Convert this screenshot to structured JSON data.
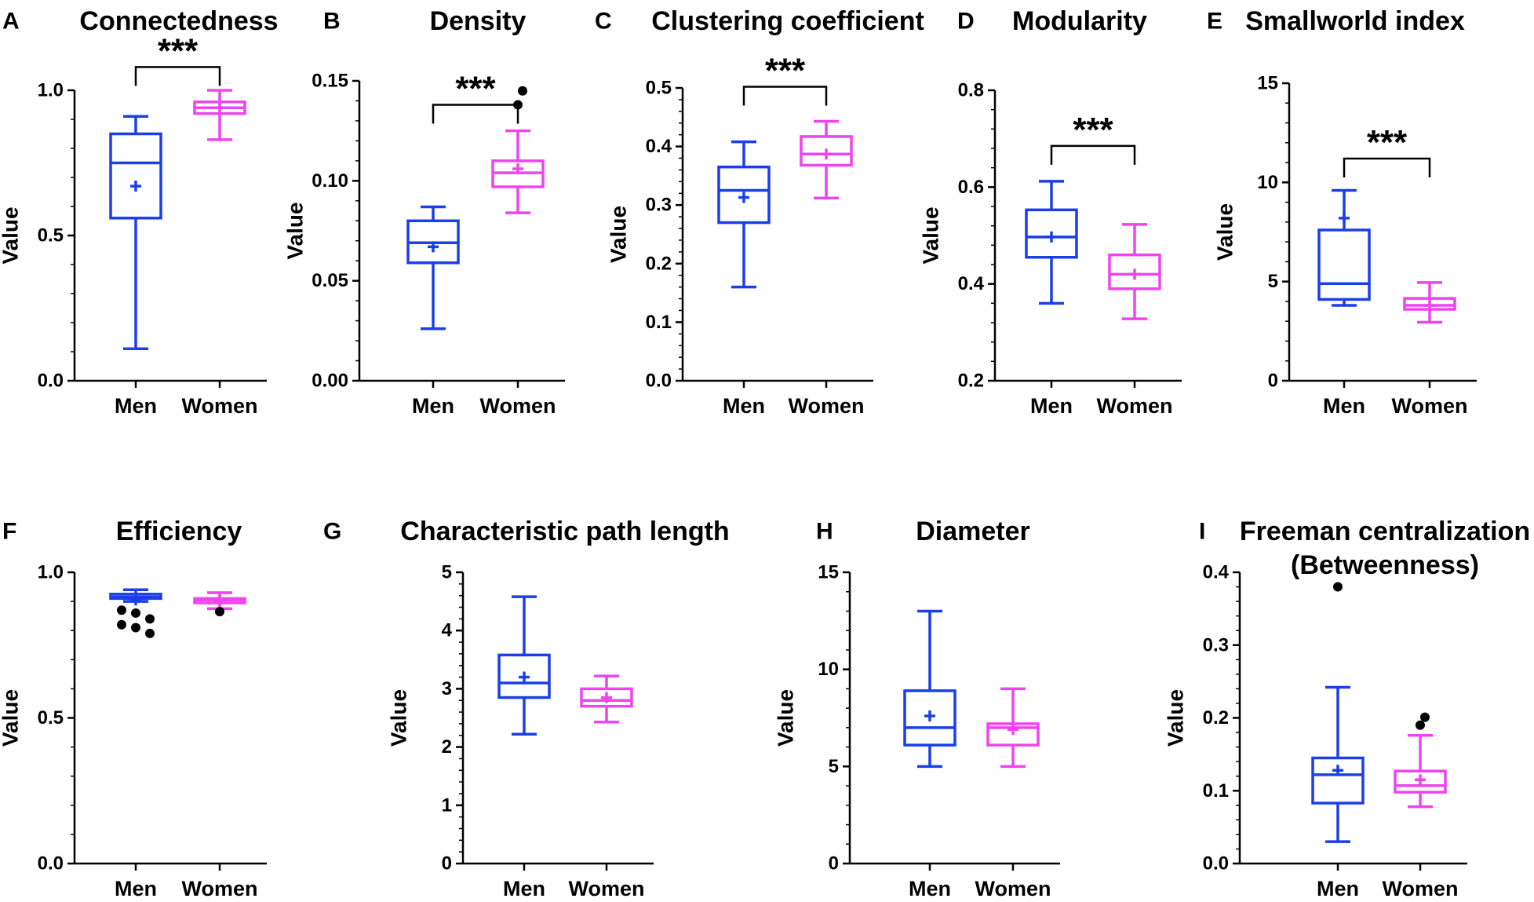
{
  "colors": {
    "men": "#1a3fe8",
    "women": "#ee44ee",
    "axis": "#000000",
    "outlier": "#000000"
  },
  "chart_data": [
    {
      "type": "box",
      "panel": "A",
      "title": "Connectedness",
      "ylabel": "Value",
      "categories": [
        "Men",
        "Women"
      ],
      "ylim": [
        0,
        1
      ],
      "yticks": [
        0.0,
        0.5,
        1.0
      ],
      "ytick_labels": [
        "0.0",
        "0.5",
        "1.0"
      ],
      "boxes": [
        {
          "group": "Men",
          "min": 0.11,
          "q1": 0.56,
          "median": 0.75,
          "q3": 0.85,
          "max": 0.91,
          "mean": 0.67,
          "outliers": []
        },
        {
          "group": "Women",
          "min": 0.83,
          "q1": 0.92,
          "median": 0.94,
          "q3": 0.96,
          "max": 1.0,
          "mean": 0.94,
          "outliers": []
        }
      ],
      "significance": {
        "label": "***",
        "level": 1.08
      }
    },
    {
      "type": "box",
      "panel": "B",
      "title": "Density",
      "ylabel": "Value",
      "categories": [
        "Men",
        "Women"
      ],
      "ylim": [
        0,
        0.15
      ],
      "yticks": [
        0,
        0.05,
        0.1,
        0.15
      ],
      "ytick_labels": [
        "0.00",
        "0.05",
        "0.10",
        "0.15"
      ],
      "boxes": [
        {
          "group": "Men",
          "min": 0.026,
          "q1": 0.059,
          "median": 0.069,
          "q3": 0.08,
          "max": 0.087,
          "mean": 0.067,
          "outliers": []
        },
        {
          "group": "Women",
          "min": 0.084,
          "q1": 0.097,
          "median": 0.104,
          "q3": 0.11,
          "max": 0.125,
          "mean": 0.106,
          "outliers": [
            0.138,
            0.145
          ]
        }
      ],
      "significance": {
        "label": "***",
        "level": 0.138
      }
    },
    {
      "type": "box",
      "panel": "C",
      "title": "Clustering coefficient",
      "ylabel": "Value",
      "categories": [
        "Men",
        "Women"
      ],
      "ylim": [
        0,
        0.5
      ],
      "yticks": [
        0,
        0.1,
        0.2,
        0.3,
        0.4,
        0.5
      ],
      "ytick_labels": [
        "0.0",
        "0.1",
        "0.2",
        "0.3",
        "0.4",
        "0.5"
      ],
      "boxes": [
        {
          "group": "Men",
          "min": 0.16,
          "q1": 0.27,
          "median": 0.325,
          "q3": 0.365,
          "max": 0.408,
          "mean": 0.313,
          "outliers": []
        },
        {
          "group": "Women",
          "min": 0.312,
          "q1": 0.368,
          "median": 0.387,
          "q3": 0.417,
          "max": 0.443,
          "mean": 0.387,
          "outliers": []
        }
      ],
      "significance": {
        "label": "***",
        "level": 0.502
      }
    },
    {
      "type": "box",
      "panel": "D",
      "title": "Modularity",
      "ylabel": "Value",
      "categories": [
        "Men",
        "Women"
      ],
      "ylim": [
        0.2,
        0.8
      ],
      "yticks": [
        0.2,
        0.4,
        0.6,
        0.8
      ],
      "ytick_labels": [
        "0.2",
        "0.4",
        "0.6",
        "0.8"
      ],
      "boxes": [
        {
          "group": "Men",
          "min": 0.36,
          "q1": 0.455,
          "median": 0.497,
          "q3": 0.553,
          "max": 0.612,
          "mean": 0.497,
          "outliers": []
        },
        {
          "group": "Women",
          "min": 0.328,
          "q1": 0.39,
          "median": 0.42,
          "q3": 0.46,
          "max": 0.523,
          "mean": 0.42,
          "outliers": []
        }
      ],
      "significance": {
        "label": "***",
        "level": 0.685
      }
    },
    {
      "type": "box",
      "panel": "E",
      "title": "Smallworld index",
      "ylabel": "Value",
      "categories": [
        "Men",
        "Women"
      ],
      "ylim": [
        0,
        15
      ],
      "yticks": [
        0,
        5,
        10,
        15
      ],
      "ytick_labels": [
        "0",
        "5",
        "10",
        "15"
      ],
      "boxes": [
        {
          "group": "Men",
          "min": 3.8,
          "q1": 4.1,
          "median": 4.9,
          "q3": 7.6,
          "max": 9.6,
          "mean": 8.2,
          "outliers": []
        },
        {
          "group": "Women",
          "min": 2.95,
          "q1": 3.6,
          "median": 3.8,
          "q3": 4.15,
          "max": 4.95,
          "mean": 3.8,
          "outliers": []
        }
      ],
      "significance": {
        "label": "***",
        "level": 11.2
      }
    },
    {
      "type": "box",
      "panel": "F",
      "title": "Efficiency",
      "ylabel": "Value",
      "categories": [
        "Men",
        "Women"
      ],
      "ylim": [
        0,
        1
      ],
      "yticks": [
        0.0,
        0.5,
        1.0
      ],
      "ytick_labels": [
        "0.0",
        "0.5",
        "1.0"
      ],
      "boxes": [
        {
          "group": "Men",
          "min": 0.9,
          "q1": 0.91,
          "median": 0.915,
          "q3": 0.925,
          "max": 0.94,
          "mean": 0.905,
          "outliers": [
            0.87,
            0.86,
            0.84,
            0.82,
            0.81,
            0.79
          ]
        },
        {
          "group": "Women",
          "min": 0.875,
          "q1": 0.895,
          "median": 0.905,
          "q3": 0.91,
          "max": 0.93,
          "mean": 0.9,
          "outliers": [
            0.865
          ]
        }
      ]
    },
    {
      "type": "box",
      "panel": "G",
      "title": "Characteristic path length",
      "ylabel": "Value",
      "categories": [
        "Men",
        "Women"
      ],
      "ylim": [
        0,
        5
      ],
      "yticks": [
        0,
        1,
        2,
        3,
        4,
        5
      ],
      "ytick_labels": [
        "0",
        "1",
        "2",
        "3",
        "4",
        "5"
      ],
      "boxes": [
        {
          "group": "Men",
          "min": 2.22,
          "q1": 2.85,
          "median": 3.1,
          "q3": 3.58,
          "max": 4.58,
          "mean": 3.2,
          "outliers": []
        },
        {
          "group": "Women",
          "min": 2.43,
          "q1": 2.7,
          "median": 2.8,
          "q3": 3.0,
          "max": 3.22,
          "mean": 2.85,
          "outliers": []
        }
      ]
    },
    {
      "type": "box",
      "panel": "H",
      "title": "Diameter",
      "ylabel": "Value",
      "categories": [
        "Men",
        "Women"
      ],
      "ylim": [
        0,
        15
      ],
      "yticks": [
        0,
        5,
        10,
        15
      ],
      "ytick_labels": [
        "0",
        "5",
        "10",
        "15"
      ],
      "boxes": [
        {
          "group": "Men",
          "min": 5.0,
          "q1": 6.1,
          "median": 7.0,
          "q3": 8.9,
          "max": 13.0,
          "mean": 7.6,
          "outliers": []
        },
        {
          "group": "Women",
          "min": 5.0,
          "q1": 6.1,
          "median": 7.0,
          "q3": 7.2,
          "max": 9.0,
          "mean": 6.9,
          "outliers": []
        }
      ]
    },
    {
      "type": "box",
      "panel": "I",
      "title": "Freeman centralization",
      "title2": "(Betweenness)",
      "ylabel": "Value",
      "categories": [
        "Men",
        "Women"
      ],
      "ylim": [
        0,
        0.4
      ],
      "yticks": [
        0,
        0.1,
        0.2,
        0.3,
        0.4
      ],
      "ytick_labels": [
        "0.0",
        "0.1",
        "0.2",
        "0.3",
        "0.4"
      ],
      "boxes": [
        {
          "group": "Men",
          "min": 0.03,
          "q1": 0.083,
          "median": 0.122,
          "q3": 0.145,
          "max": 0.242,
          "mean": 0.128,
          "outliers": [
            0.38
          ]
        },
        {
          "group": "Women",
          "min": 0.078,
          "q1": 0.098,
          "median": 0.107,
          "q3": 0.127,
          "max": 0.176,
          "mean": 0.115,
          "outliers": [
            0.19,
            0.201
          ]
        }
      ]
    }
  ]
}
